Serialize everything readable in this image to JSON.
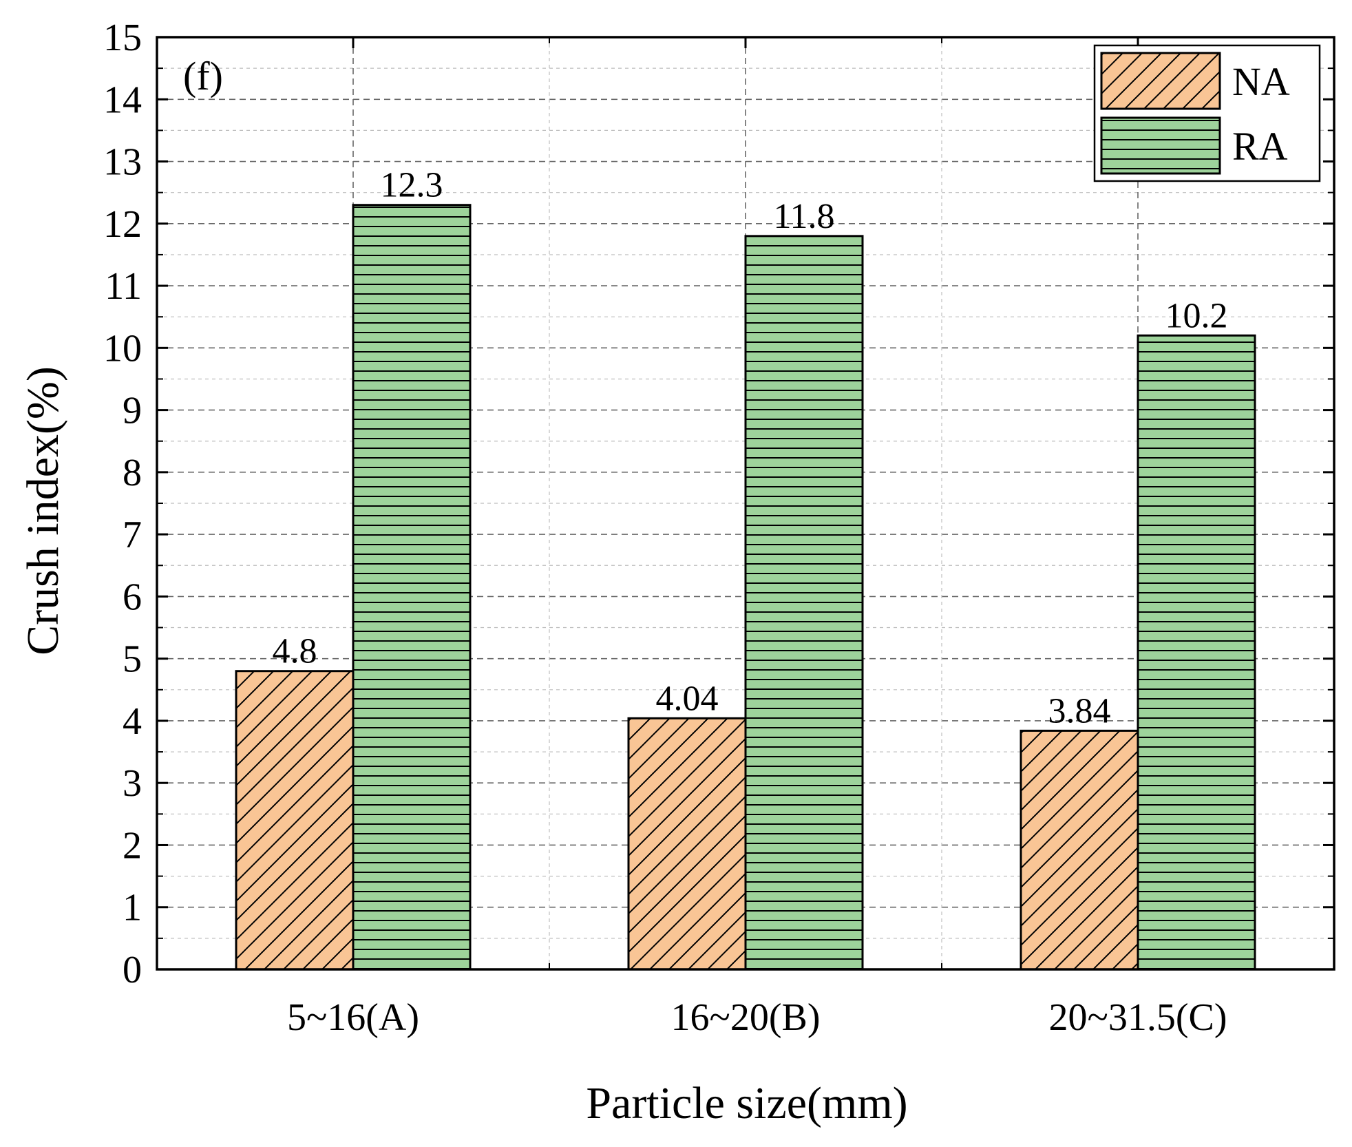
{
  "chart_data": {
    "type": "bar",
    "panel_label": "(f)",
    "title": "",
    "xlabel": "Particle size(mm)",
    "ylabel": "Crush index(%)",
    "ylim": [
      0,
      15
    ],
    "yticks": [
      0,
      1,
      2,
      3,
      4,
      5,
      6,
      7,
      8,
      9,
      10,
      11,
      12,
      13,
      14,
      15
    ],
    "categories": [
      "5~16(A)",
      "16~20(B)",
      "20~31.5(C)"
    ],
    "series": [
      {
        "name": "NA",
        "values": [
          4.8,
          4.04,
          3.84
        ],
        "labels": [
          "4.8",
          "4.04",
          "3.84"
        ],
        "color": "#f9c595",
        "pattern": "diagonal-hatch"
      },
      {
        "name": "RA",
        "values": [
          12.3,
          11.8,
          10.2
        ],
        "labels": [
          "12.3",
          "11.8",
          "10.2"
        ],
        "color": "#9ed39b",
        "pattern": "horizontal-hatch"
      }
    ],
    "grid": true,
    "legend_position": "top-right"
  }
}
